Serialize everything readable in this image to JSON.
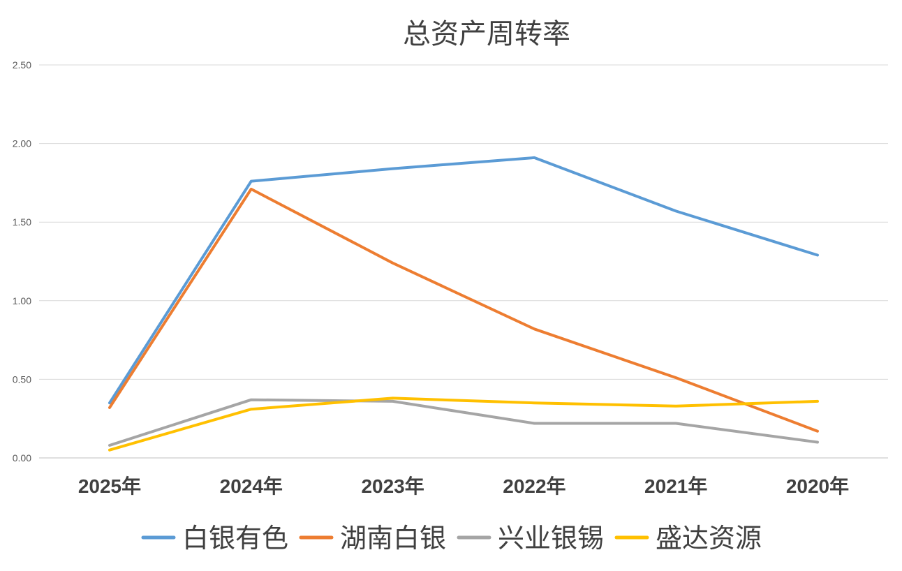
{
  "chart_data": {
    "type": "line",
    "title": "总资产周转率",
    "xlabel": "",
    "ylabel": "",
    "categories": [
      "2025年",
      "2024年",
      "2023年",
      "2022年",
      "2021年",
      "2020年"
    ],
    "y_ticks": [
      "0.00",
      "0.50",
      "1.00",
      "1.50",
      "2.00",
      "2.50"
    ],
    "ylim": [
      0,
      2.5
    ],
    "grid": true,
    "legend_position": "bottom",
    "series": [
      {
        "name": "白银有色",
        "color": "#5b9bd5",
        "values": [
          0.35,
          1.76,
          1.84,
          1.91,
          1.57,
          1.29
        ]
      },
      {
        "name": "湖南白银",
        "color": "#ed7d31",
        "values": [
          0.32,
          1.71,
          1.24,
          0.82,
          0.51,
          0.17
        ]
      },
      {
        "name": "兴业银锡",
        "color": "#a5a5a5",
        "values": [
          0.08,
          0.37,
          0.36,
          0.22,
          0.22,
          0.1
        ]
      },
      {
        "name": "盛达资源",
        "color": "#ffc000",
        "values": [
          0.05,
          0.31,
          0.38,
          0.35,
          0.33,
          0.36
        ]
      }
    ]
  }
}
